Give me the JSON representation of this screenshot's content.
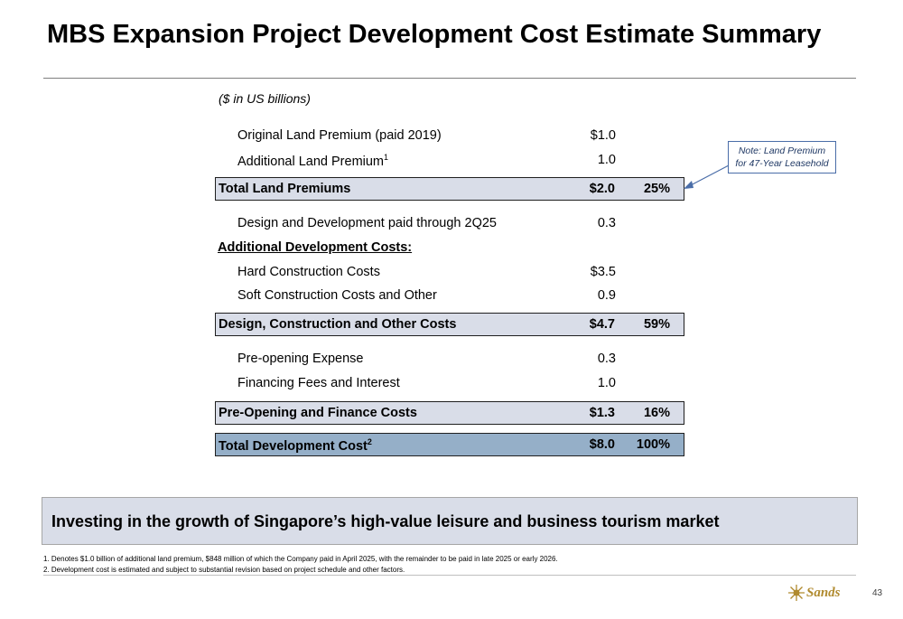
{
  "title": "MBS Expansion Project Development Cost Estimate Summary",
  "units": "($ in US billions)",
  "rows": [
    {
      "label": "Original Land Premium (paid 2019)",
      "value": "$1.0",
      "pct": ""
    },
    {
      "label": "Additional Land Premium",
      "sup": "1",
      "value": "1.0",
      "pct": ""
    },
    {
      "label": "Total Land Premiums",
      "value": "$2.0",
      "pct": "25%"
    },
    {
      "label": "Design and Development paid through 2Q25",
      "value": "0.3",
      "pct": ""
    },
    {
      "label": "Additional Development Costs:",
      "value": "",
      "pct": ""
    },
    {
      "label": "Hard Construction Costs",
      "value": "$3.5",
      "pct": ""
    },
    {
      "label": "Soft Construction Costs and Other",
      "value": "0.9",
      "pct": ""
    },
    {
      "label": "Design, Construction and Other Costs",
      "value": "$4.7",
      "pct": "59%"
    },
    {
      "label": "Pre-opening Expense",
      "value": "0.3",
      "pct": ""
    },
    {
      "label": "Financing Fees and Interest",
      "value": "1.0",
      "pct": ""
    },
    {
      "label": "Pre-Opening and Finance Costs",
      "value": "$1.3",
      "pct": "16%"
    },
    {
      "label": "Total Development Cost",
      "sup": "2",
      "value": "$8.0",
      "pct": "100%"
    }
  ],
  "note": {
    "line1": "Note: Land Premium",
    "line2": "for 47-Year Leasehold"
  },
  "banner": "Investing in the growth of Singapore’s high-value leisure and business tourism market",
  "footnotes": [
    "1. Denotes $1.0 billion of additional land premium, $848 million of which the Company paid in April 2025, with the remainder to be paid in late 2025 or early 2026.",
    "2. Development cost is estimated and subject to substantial revision based on project schedule and other factors."
  ],
  "logo_text": "Sands",
  "page_number": "43",
  "colors": {
    "total_fill": "#d9dde8",
    "grand_total_fill": "#95afc8",
    "note_border": "#4a6da8",
    "logo": "#b08a2e"
  }
}
